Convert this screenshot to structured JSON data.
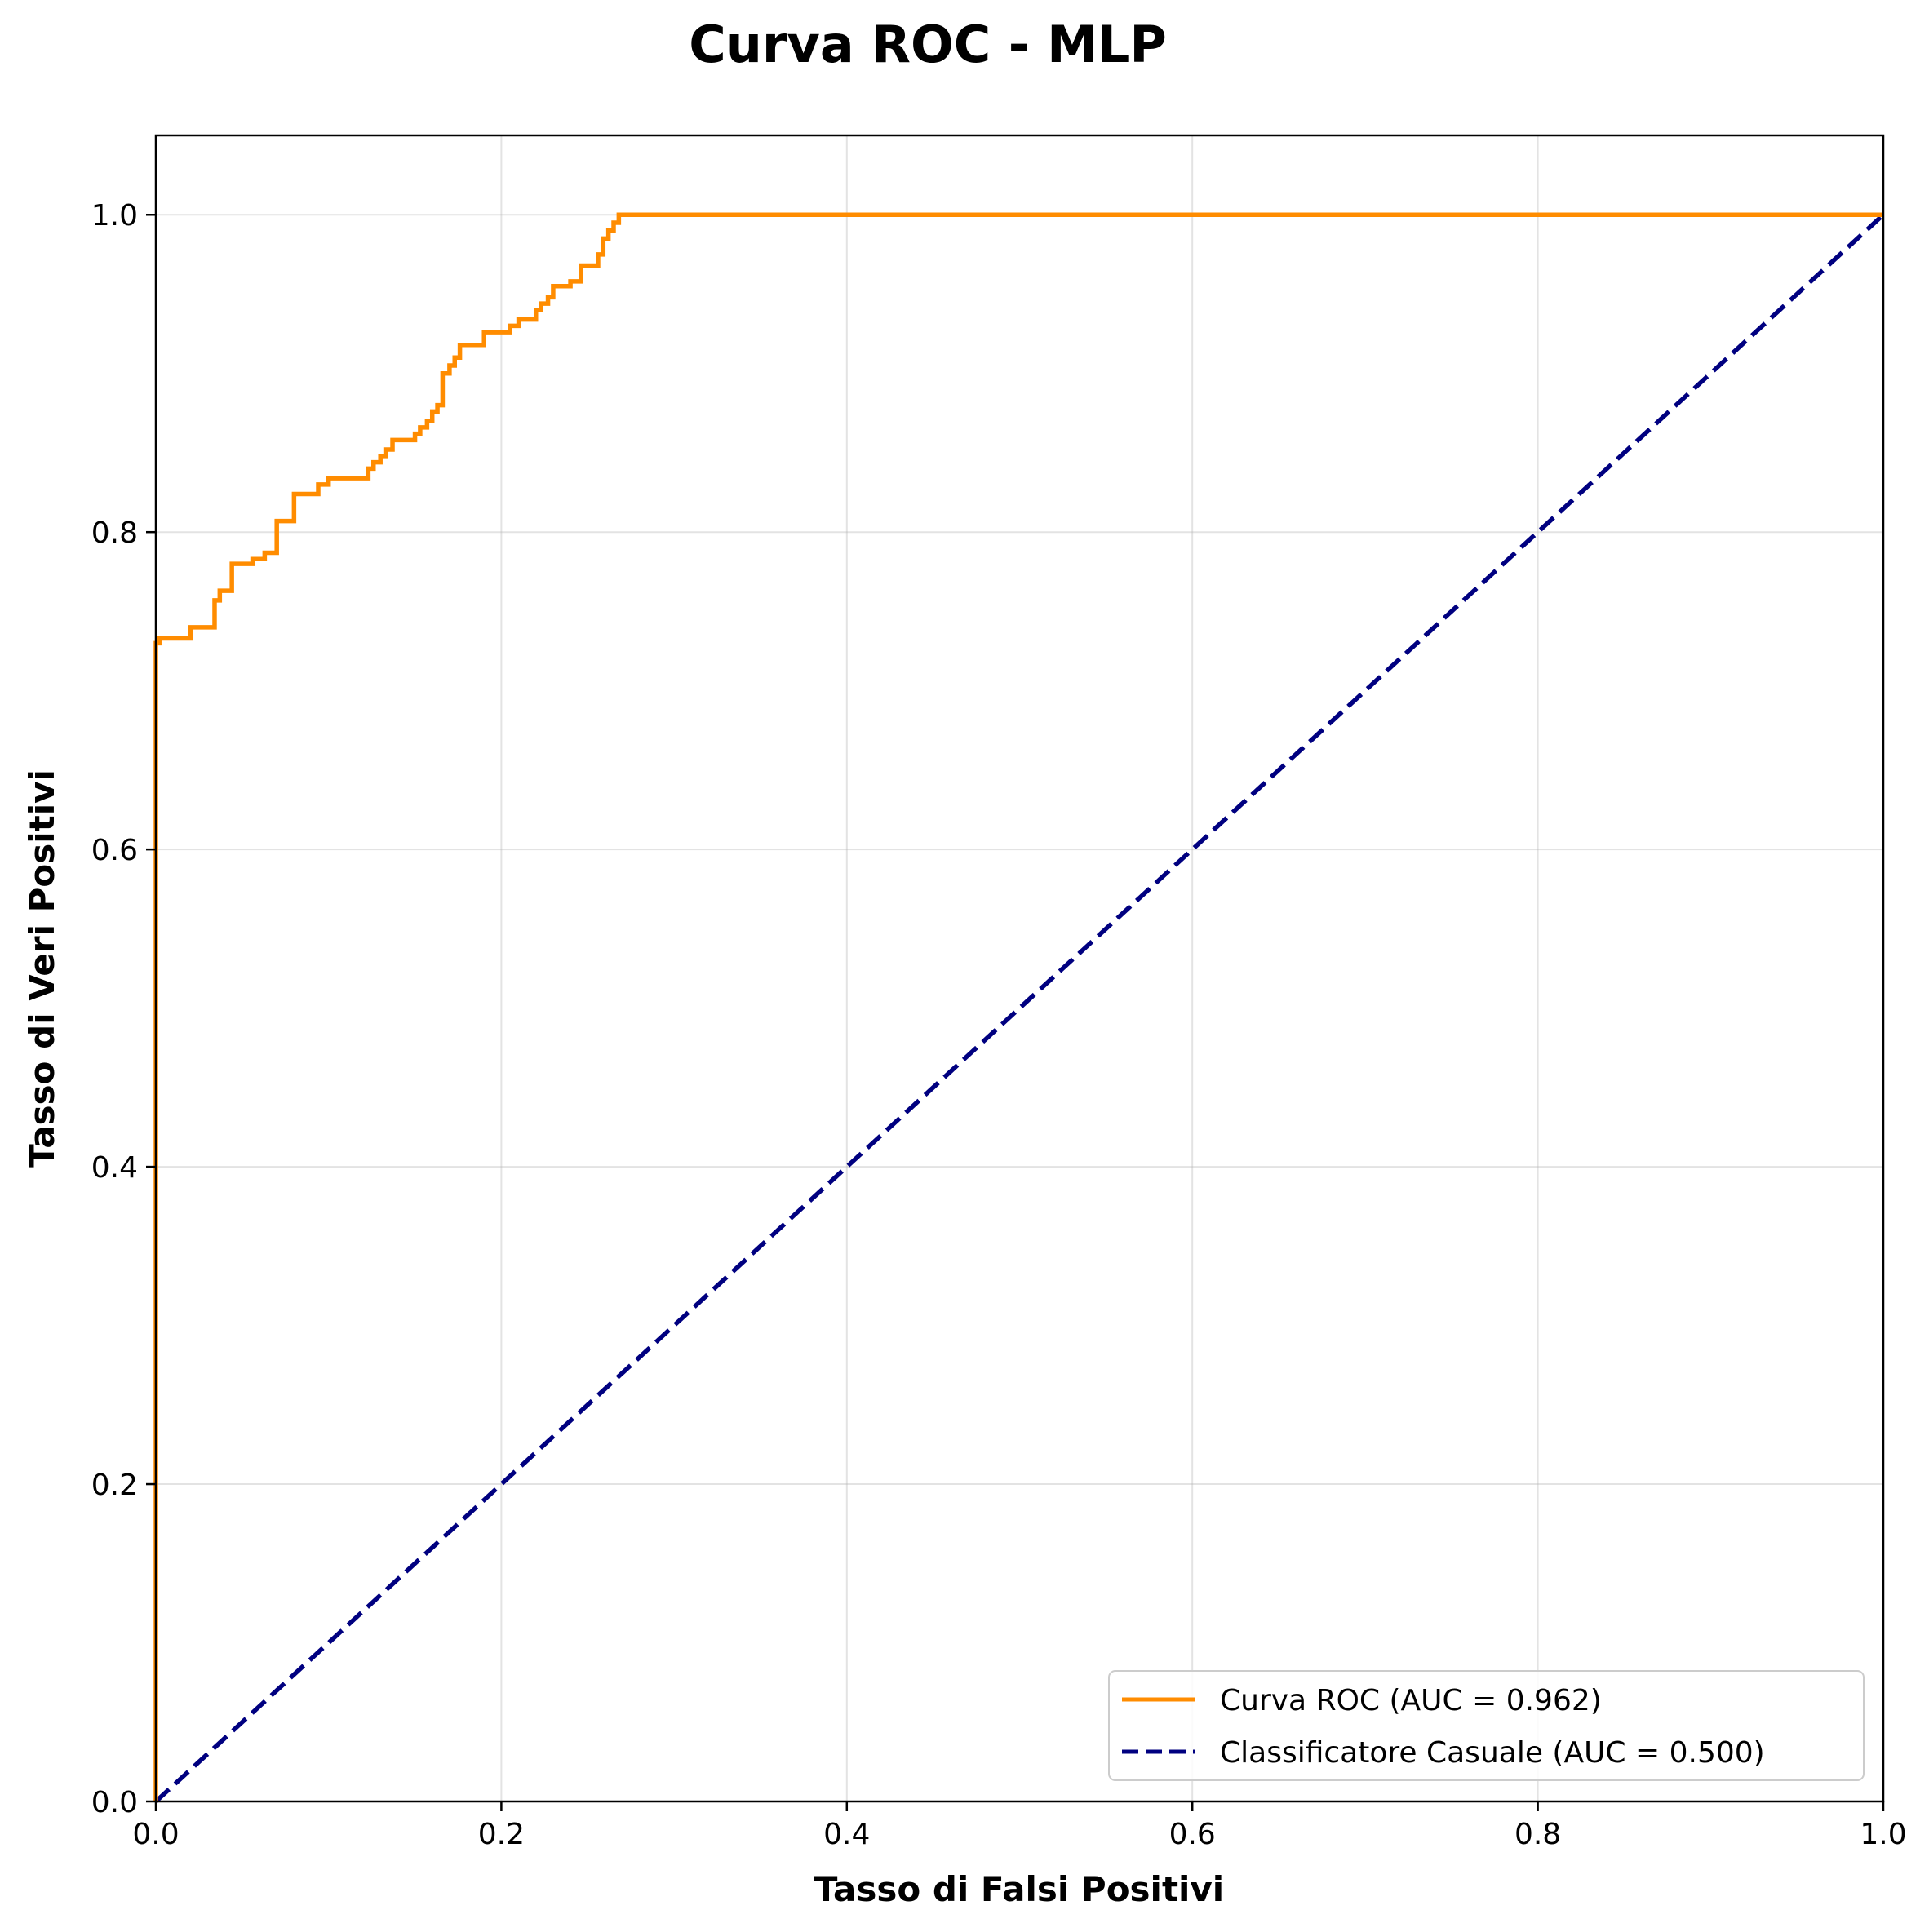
{
  "chart_data": {
    "type": "line",
    "title": "Curva ROC - MLP",
    "xlabel": "Tasso di Falsi Positivi",
    "ylabel": "Tasso di Veri Positivi",
    "xlim": [
      0.0,
      1.0
    ],
    "ylim": [
      0.0,
      1.05
    ],
    "x_ticks": [
      "0.0",
      "0.2",
      "0.4",
      "0.6",
      "0.8",
      "1.0"
    ],
    "y_ticks": [
      "0.0",
      "0.2",
      "0.4",
      "0.6",
      "0.8",
      "1.0"
    ],
    "grid": true,
    "legend_position": "lower-right",
    "series": [
      {
        "name": "Curva ROC (AUC = 0.962)",
        "color": "#ff8c00",
        "style": "solid",
        "x": [
          0.0,
          0.0,
          0.002,
          0.002,
          0.004,
          0.004,
          0.02,
          0.02,
          0.034,
          0.034,
          0.037,
          0.037,
          0.044,
          0.044,
          0.056,
          0.056,
          0.063,
          0.063,
          0.07,
          0.07,
          0.08,
          0.08,
          0.094,
          0.094,
          0.1,
          0.1,
          0.123,
          0.123,
          0.126,
          0.126,
          0.13,
          0.13,
          0.133,
          0.133,
          0.137,
          0.137,
          0.14,
          0.14,
          0.15,
          0.15,
          0.153,
          0.153,
          0.157,
          0.157,
          0.16,
          0.16,
          0.163,
          0.163,
          0.166,
          0.166,
          0.17,
          0.17,
          0.173,
          0.173,
          0.176,
          0.176,
          0.18,
          0.18,
          0.19,
          0.19,
          0.2,
          0.2,
          0.205,
          0.205,
          0.21,
          0.21,
          0.22,
          0.22,
          0.223,
          0.223,
          0.227,
          0.227,
          0.23,
          0.23,
          0.24,
          0.24,
          0.246,
          0.246,
          0.256,
          0.256,
          0.259,
          0.259,
          0.262,
          0.262,
          0.265,
          0.265,
          0.268,
          0.268,
          1.0
        ],
        "y": [
          0.0,
          0.73,
          0.73,
          0.733,
          0.733,
          0.733,
          0.733,
          0.74,
          0.74,
          0.757,
          0.757,
          0.763,
          0.763,
          0.78,
          0.78,
          0.783,
          0.783,
          0.787,
          0.787,
          0.807,
          0.807,
          0.824,
          0.824,
          0.83,
          0.83,
          0.834,
          0.834,
          0.84,
          0.84,
          0.844,
          0.844,
          0.848,
          0.848,
          0.852,
          0.852,
          0.858,
          0.858,
          0.858,
          0.858,
          0.862,
          0.862,
          0.866,
          0.866,
          0.87,
          0.87,
          0.876,
          0.876,
          0.88,
          0.88,
          0.9,
          0.9,
          0.905,
          0.905,
          0.91,
          0.91,
          0.918,
          0.918,
          0.918,
          0.918,
          0.926,
          0.926,
          0.926,
          0.926,
          0.93,
          0.93,
          0.934,
          0.934,
          0.94,
          0.94,
          0.944,
          0.944,
          0.948,
          0.948,
          0.955,
          0.955,
          0.958,
          0.958,
          0.968,
          0.968,
          0.975,
          0.975,
          0.985,
          0.985,
          0.99,
          0.99,
          0.995,
          0.995,
          1.0,
          1.0
        ]
      },
      {
        "name": "Classificatore Casuale (AUC = 0.500)",
        "color": "#000080",
        "style": "dashed",
        "x": [
          0.0,
          1.0
        ],
        "y": [
          0.0,
          1.0
        ]
      }
    ]
  }
}
